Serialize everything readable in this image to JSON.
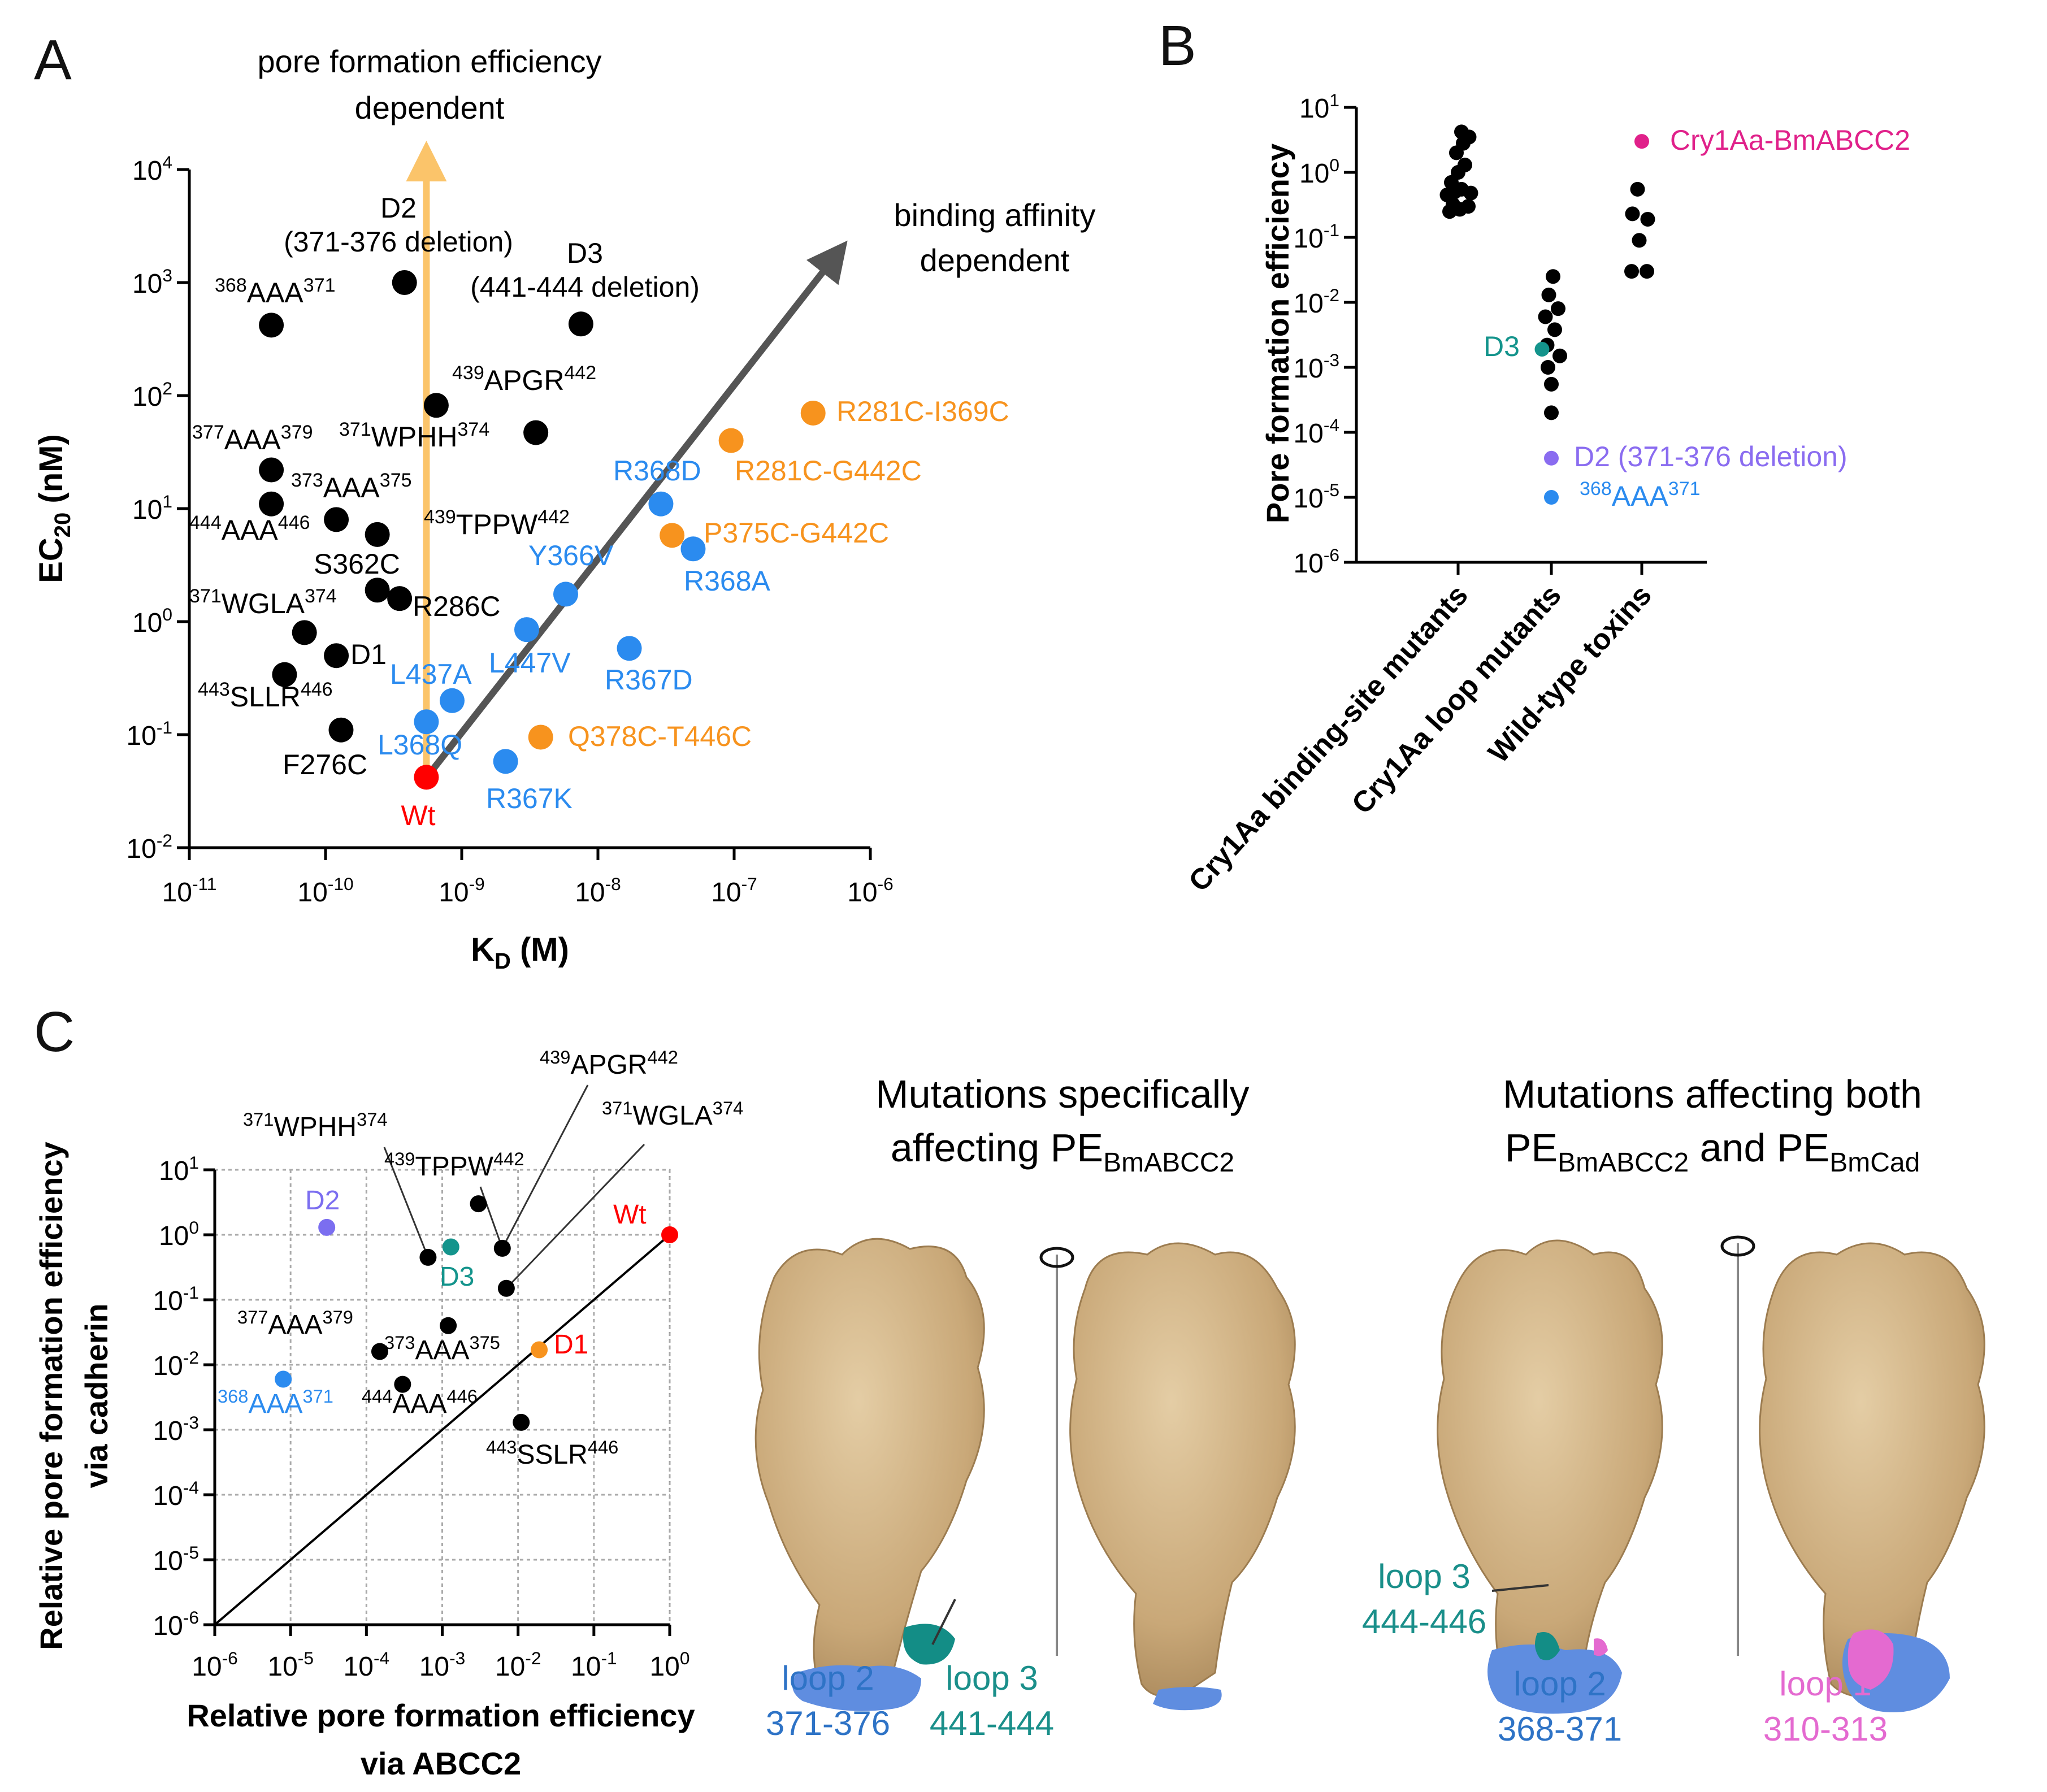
{
  "chart_data": [
    {
      "panel": "A",
      "type": "scatter",
      "xscale": "log",
      "yscale": "log",
      "xlim": [
        1e-11,
        1e-06
      ],
      "ylim": [
        0.01,
        10000
      ],
      "xlabel_base": "K",
      "xlabel_sub": "D",
      "xlabel_tail": " (M)",
      "ylabel_base": "EC",
      "ylabel_sub": "20",
      "ylabel_tail": " (nM)",
      "xticks": [
        {
          "base": "10",
          "exp": "-11"
        },
        {
          "base": "10",
          "exp": "-10"
        },
        {
          "base": "10",
          "exp": "-9"
        },
        {
          "base": "10",
          "exp": "-8"
        },
        {
          "base": "10",
          "exp": "-7"
        },
        {
          "base": "10",
          "exp": "-6"
        }
      ],
      "yticks": [
        {
          "base": "10",
          "exp": "-2"
        },
        {
          "base": "10",
          "exp": "-1"
        },
        {
          "base": "10",
          "exp": "0"
        },
        {
          "base": "10",
          "exp": "1"
        },
        {
          "base": "10",
          "exp": "2"
        },
        {
          "base": "10",
          "exp": "3"
        },
        {
          "base": "10",
          "exp": "4"
        }
      ],
      "arrow_up_label": [
        "pore formation efficiency",
        "dependent"
      ],
      "arrow_diag_label": [
        "binding affinity",
        "dependent"
      ],
      "colors": {
        "black": "#000000",
        "blue": "#2b8bef",
        "orange": "#f7931e",
        "red": "#ff0000",
        "up_arrow": "#fbc46a",
        "diag_arrow": "#555555"
      },
      "points": [
        {
          "x": 5.5e-10,
          "y": 0.042,
          "color": "red"
        },
        {
          "x": 3.8e-10,
          "y": 1000,
          "color": "black"
        },
        {
          "x": 4e-11,
          "y": 420,
          "color": "black"
        },
        {
          "x": 7.5e-09,
          "y": 430,
          "color": "black"
        },
        {
          "x": 6.5e-10,
          "y": 82,
          "color": "black"
        },
        {
          "x": 3.5e-09,
          "y": 47,
          "color": "black"
        },
        {
          "x": 4e-11,
          "y": 22,
          "color": "black"
        },
        {
          "x": 4e-11,
          "y": 11,
          "color": "black"
        },
        {
          "x": 1.2e-10,
          "y": 8,
          "color": "black"
        },
        {
          "x": 2.4e-10,
          "y": 5.9,
          "color": "black"
        },
        {
          "x": 2.4e-10,
          "y": 1.9,
          "color": "black"
        },
        {
          "x": 3.5e-10,
          "y": 1.6,
          "color": "black"
        },
        {
          "x": 7e-11,
          "y": 0.8,
          "color": "black"
        },
        {
          "x": 1.2e-10,
          "y": 0.5,
          "color": "black"
        },
        {
          "x": 5e-11,
          "y": 0.34,
          "color": "black"
        },
        {
          "x": 1.3e-10,
          "y": 0.11,
          "color": "black"
        },
        {
          "x": 5.5e-10,
          "y": 0.13,
          "color": "blue"
        },
        {
          "x": 8.5e-10,
          "y": 0.2,
          "color": "blue"
        },
        {
          "x": 2.1e-09,
          "y": 0.058,
          "color": "blue"
        },
        {
          "x": 3e-09,
          "y": 0.85,
          "color": "blue"
        },
        {
          "x": 5.8e-09,
          "y": 1.75,
          "color": "blue"
        },
        {
          "x": 1.7e-08,
          "y": 0.58,
          "color": "blue"
        },
        {
          "x": 2.9e-08,
          "y": 11,
          "color": "blue"
        },
        {
          "x": 5e-08,
          "y": 4.4,
          "color": "blue"
        },
        {
          "x": 3.5e-08,
          "y": 5.8,
          "color": "orange"
        },
        {
          "x": 3.8e-09,
          "y": 0.095,
          "color": "orange"
        },
        {
          "x": 9.5e-08,
          "y": 40,
          "color": "orange"
        },
        {
          "x": 3.8e-07,
          "y": 70,
          "color": "orange"
        }
      ],
      "labels": [
        {
          "text": "Wt",
          "color": "red"
        },
        {
          "text": "D2",
          "color": "black"
        },
        {
          "text": "(371-376 deletion)",
          "color": "black"
        },
        {
          "text": "D3",
          "color": "black"
        },
        {
          "text": "(441-444 deletion)",
          "color": "black"
        },
        {
          "sup1": "368",
          "main": "AAA",
          "sup2": "371",
          "color": "black"
        },
        {
          "sup1": "439",
          "main": "APGR",
          "sup2": "442",
          "color": "black"
        },
        {
          "sup1": "377",
          "main": "AAA",
          "sup2": "379",
          "color": "black"
        },
        {
          "sup1": "371",
          "main": "WPHH",
          "sup2": "374",
          "color": "black"
        },
        {
          "sup1": "373",
          "main": "AAA",
          "sup2": "375",
          "color": "black"
        },
        {
          "sup1": "444",
          "main": "AAA",
          "sup2": "446",
          "color": "black"
        },
        {
          "sup1": "439",
          "main": "TPPW",
          "sup2": "442",
          "color": "black"
        },
        {
          "text": "S362C",
          "color": "black"
        },
        {
          "sup1": "371",
          "main": "WGLA",
          "sup2": "374",
          "color": "black"
        },
        {
          "text": "R286C",
          "color": "black"
        },
        {
          "text": "D1",
          "color": "black"
        },
        {
          "sup1": "443",
          "main": "SLLR",
          "sup2": "446",
          "color": "black"
        },
        {
          "text": "F276C",
          "color": "black"
        },
        {
          "text": "L437A",
          "color": "blue"
        },
        {
          "text": "L368Q",
          "color": "blue"
        },
        {
          "text": "R367K",
          "color": "blue"
        },
        {
          "text": "L447V",
          "color": "blue"
        },
        {
          "text": "Y366V",
          "color": "blue"
        },
        {
          "text": "R367D",
          "color": "blue"
        },
        {
          "text": "R368D",
          "color": "blue"
        },
        {
          "text": "R368A",
          "color": "blue"
        },
        {
          "text": "P375C-G442C",
          "color": "orange"
        },
        {
          "text": "R281C-G442C",
          "color": "orange"
        },
        {
          "text": "R281C-I369C",
          "color": "orange"
        },
        {
          "text": "Q378C-T446C",
          "color": "orange"
        }
      ]
    },
    {
      "panel": "B",
      "type": "scatter",
      "yscale": "log",
      "ylim": [
        1e-06,
        10
      ],
      "ylabel": "Pore formation efficiency",
      "yticks": [
        {
          "base": "10",
          "exp": "-6"
        },
        {
          "base": "10",
          "exp": "-5"
        },
        {
          "base": "10",
          "exp": "-4"
        },
        {
          "base": "10",
          "exp": "-3"
        },
        {
          "base": "10",
          "exp": "-2"
        },
        {
          "base": "10",
          "exp": "-1"
        },
        {
          "base": "10",
          "exp": "0"
        },
        {
          "base": "10",
          "exp": "1"
        }
      ],
      "categories": [
        "Cry1Aa binding-site mutants",
        "Cry1Aa loop mutants",
        "Wild-type toxins"
      ],
      "colors": {
        "black": "#000000",
        "teal": "#14948c",
        "purple": "#8a6cf0",
        "blue": "#2b8bef",
        "magenta": "#e0218a"
      },
      "points": [
        {
          "cat": 0,
          "dx": -0.1,
          "y": 0.25,
          "color": "black"
        },
        {
          "cat": 0,
          "dx": -0.06,
          "y": 0.32,
          "color": "black"
        },
        {
          "cat": 0,
          "dx": 0.02,
          "y": 0.27,
          "color": "black"
        },
        {
          "cat": 0,
          "dx": 0.12,
          "y": 0.3,
          "color": "black"
        },
        {
          "cat": 0,
          "dx": -0.13,
          "y": 0.45,
          "color": "black"
        },
        {
          "cat": 0,
          "dx": -0.04,
          "y": 0.5,
          "color": "black"
        },
        {
          "cat": 0,
          "dx": 0.04,
          "y": 0.55,
          "color": "black"
        },
        {
          "cat": 0,
          "dx": 0.15,
          "y": 0.48,
          "color": "black"
        },
        {
          "cat": 0,
          "dx": -0.08,
          "y": 0.7,
          "color": "black"
        },
        {
          "cat": 0,
          "dx": 0.0,
          "y": 1.0,
          "color": "black"
        },
        {
          "cat": 0,
          "dx": 0.08,
          "y": 1.3,
          "color": "black"
        },
        {
          "cat": 0,
          "dx": -0.02,
          "y": 2.0,
          "color": "black"
        },
        {
          "cat": 0,
          "dx": 0.06,
          "y": 2.8,
          "color": "black"
        },
        {
          "cat": 0,
          "dx": 0.13,
          "y": 3.5,
          "color": "black"
        },
        {
          "cat": 0,
          "dx": 0.04,
          "y": 4.2,
          "color": "black"
        },
        {
          "cat": 1,
          "dx": 0.02,
          "y": 0.025,
          "color": "black"
        },
        {
          "cat": 1,
          "dx": -0.03,
          "y": 0.013,
          "color": "black"
        },
        {
          "cat": 1,
          "dx": 0.08,
          "y": 0.008,
          "color": "black"
        },
        {
          "cat": 1,
          "dx": -0.07,
          "y": 0.006,
          "color": "black"
        },
        {
          "cat": 1,
          "dx": 0.04,
          "y": 0.0038,
          "color": "black"
        },
        {
          "cat": 1,
          "dx": -0.05,
          "y": 0.0022,
          "color": "black"
        },
        {
          "cat": 1,
          "dx": 0.1,
          "y": 0.0015,
          "color": "black"
        },
        {
          "cat": 1,
          "dx": -0.04,
          "y": 0.001,
          "color": "black"
        },
        {
          "cat": 1,
          "dx": 0.0,
          "y": 0.00055,
          "color": "black"
        },
        {
          "cat": 1,
          "dx": 0.0,
          "y": 0.0002,
          "color": "black"
        },
        {
          "cat": 1,
          "dx": -0.11,
          "y": 0.0019,
          "color": "teal"
        },
        {
          "cat": 1,
          "dx": 0.0,
          "y": 4e-05,
          "color": "purple"
        },
        {
          "cat": 1,
          "dx": 0.0,
          "y": 1e-05,
          "color": "blue"
        },
        {
          "cat": 2,
          "dx": -0.05,
          "y": 0.55,
          "color": "black"
        },
        {
          "cat": 2,
          "dx": -0.11,
          "y": 0.23,
          "color": "black"
        },
        {
          "cat": 2,
          "dx": 0.07,
          "y": 0.19,
          "color": "black"
        },
        {
          "cat": 2,
          "dx": -0.03,
          "y": 0.09,
          "color": "black"
        },
        {
          "cat": 2,
          "dx": -0.12,
          "y": 0.03,
          "color": "black"
        },
        {
          "cat": 2,
          "dx": 0.06,
          "y": 0.03,
          "color": "black"
        },
        {
          "cat": 2,
          "dx": 0.0,
          "y": 3.0,
          "color": "magenta"
        }
      ],
      "labels": [
        {
          "text": "Cry1Aa-BmABCC2",
          "color": "magenta"
        },
        {
          "text": "D3",
          "color": "teal"
        },
        {
          "text": "D2 (371-376 deletion)",
          "color": "purple"
        },
        {
          "sup1": "368",
          "main": "AAA",
          "sup2": "371",
          "color": "blue"
        }
      ]
    },
    {
      "panel": "C",
      "type": "scatter",
      "xscale": "log",
      "yscale": "log",
      "xlim": [
        1e-06,
        1
      ],
      "ylim": [
        1e-06,
        10
      ],
      "xlabel": [
        "Relative pore formation efficiency",
        "via ABCC2"
      ],
      "ylabel": [
        "Relative pore formation efficiency",
        "via cadherin"
      ],
      "xticks": [
        {
          "base": "10",
          "exp": "-6"
        },
        {
          "base": "10",
          "exp": "-5"
        },
        {
          "base": "10",
          "exp": "-4"
        },
        {
          "base": "10",
          "exp": "-3"
        },
        {
          "base": "10",
          "exp": "-2"
        },
        {
          "base": "10",
          "exp": "-1"
        },
        {
          "base": "10",
          "exp": "0"
        }
      ],
      "yticks": [
        {
          "base": "10",
          "exp": "-6"
        },
        {
          "base": "10",
          "exp": "-5"
        },
        {
          "base": "10",
          "exp": "-4"
        },
        {
          "base": "10",
          "exp": "-3"
        },
        {
          "base": "10",
          "exp": "-2"
        },
        {
          "base": "10",
          "exp": "-1"
        },
        {
          "base": "10",
          "exp": "0"
        },
        {
          "base": "10",
          "exp": "1"
        }
      ],
      "grid": true,
      "colors": {
        "black": "#000000",
        "purple": "#7b6ef0",
        "teal": "#14948c",
        "red": "#ff0000",
        "orange": "#f7931e",
        "blue": "#2b8bef"
      },
      "points": [
        {
          "x": 1.0,
          "y": 1.0,
          "color": "red"
        },
        {
          "x": 3e-05,
          "y": 1.3,
          "color": "purple"
        },
        {
          "x": 0.0013,
          "y": 0.65,
          "color": "teal"
        },
        {
          "x": 0.00065,
          "y": 0.45,
          "color": "black"
        },
        {
          "x": 0.003,
          "y": 3.0,
          "color": "black"
        },
        {
          "x": 0.0062,
          "y": 0.62,
          "color": "black"
        },
        {
          "x": 0.007,
          "y": 0.15,
          "color": "black"
        },
        {
          "x": 0.0012,
          "y": 0.04,
          "color": "black"
        },
        {
          "x": 0.00015,
          "y": 0.016,
          "color": "black"
        },
        {
          "x": 0.0003,
          "y": 0.005,
          "color": "black"
        },
        {
          "x": 0.011,
          "y": 0.0013,
          "color": "black"
        },
        {
          "x": 8e-06,
          "y": 0.006,
          "color": "blue"
        },
        {
          "x": 0.019,
          "y": 0.017,
          "color": "orange"
        }
      ],
      "labels": [
        {
          "text": "Wt",
          "color": "red"
        },
        {
          "text": "D2",
          "color": "purple"
        },
        {
          "text": "D3",
          "color": "teal"
        },
        {
          "text": "D1",
          "color": "red"
        },
        {
          "sup1": "371",
          "main": "WPHH",
          "sup2": "374",
          "color": "black"
        },
        {
          "sup1": "439",
          "main": "TPPW",
          "sup2": "442",
          "color": "black"
        },
        {
          "sup1": "439",
          "main": "APGR",
          "sup2": "442",
          "color": "black"
        },
        {
          "sup1": "371",
          "main": "WGLA",
          "sup2": "374",
          "color": "black"
        },
        {
          "sup1": "377",
          "main": "AAA",
          "sup2": "379",
          "color": "black"
        },
        {
          "sup1": "373",
          "main": "AAA",
          "sup2": "375",
          "color": "black"
        },
        {
          "sup1": "444",
          "main": "AAA",
          "sup2": "446",
          "color": "black"
        },
        {
          "sup1": "443",
          "main": "SSLR",
          "sup2": "446",
          "color": "black"
        },
        {
          "sup1": "368",
          "main": "AAA",
          "sup2": "371",
          "color": "blue"
        }
      ]
    }
  ],
  "panel_letters": [
    "A",
    "B",
    "C"
  ],
  "structures": {
    "left_title_line1": "Mutations specifically",
    "left_title_line2_a": "affecting PE",
    "left_title_line2_sub": "BmABCC2",
    "right_title_line1": "Mutations affecting both",
    "right_title_line2_a": "PE",
    "right_title_line2_sub1": "BmABCC2",
    "right_title_line2_b": " and PE",
    "right_title_line2_sub2": "BmCad",
    "loops": [
      {
        "line1": "loop 2",
        "line2": "371-376",
        "color": "#2e73c6"
      },
      {
        "line1": "loop 3",
        "line2": "441-444",
        "color": "#1a8f8a"
      },
      {
        "line1": "loop 3",
        "line2": "444-446",
        "color": "#1a8f8a"
      },
      {
        "line1": "loop 2",
        "line2": "368-371",
        "color": "#2e73c6"
      },
      {
        "line1": "loop 1",
        "line2": "310-313",
        "color": "#e46ad0"
      }
    ],
    "surface_color": "#d2b487",
    "loop_colors": {
      "loop1": "#e46ad0",
      "loop2": "#5f8de0",
      "loop3": "#138d86"
    }
  }
}
